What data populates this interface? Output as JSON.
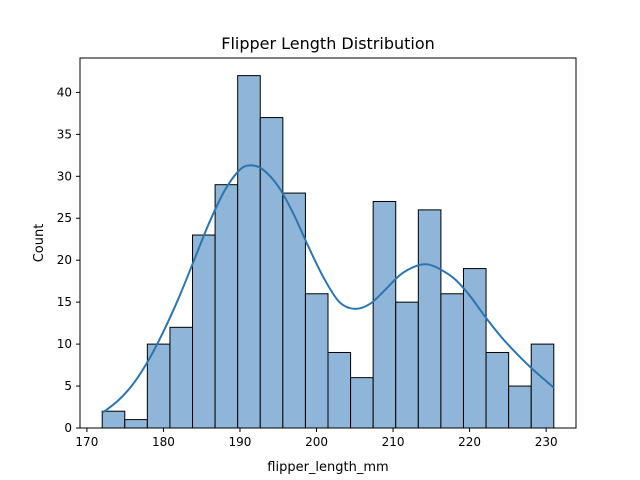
{
  "chart_data": {
    "type": "bar",
    "subtype": "histogram",
    "title": "Flipper Length Distribution",
    "xlabel": "flipper_length_mm",
    "ylabel": "Count",
    "xlim": [
      169.1,
      233.9
    ],
    "ylim": [
      0,
      44.1
    ],
    "xticks": [
      170,
      180,
      190,
      200,
      210,
      220,
      230
    ],
    "yticks": [
      0,
      5,
      10,
      15,
      20,
      25,
      30,
      35,
      40
    ],
    "bins": [
      {
        "x0": 172.0,
        "x1": 174.95,
        "count": 2
      },
      {
        "x0": 174.95,
        "x1": 177.9,
        "count": 1
      },
      {
        "x0": 177.9,
        "x1": 180.85,
        "count": 10
      },
      {
        "x0": 180.85,
        "x1": 183.8,
        "count": 12
      },
      {
        "x0": 183.8,
        "x1": 186.75,
        "count": 23
      },
      {
        "x0": 186.75,
        "x1": 189.7,
        "count": 29
      },
      {
        "x0": 189.7,
        "x1": 192.65,
        "count": 42
      },
      {
        "x0": 192.65,
        "x1": 195.6,
        "count": 37
      },
      {
        "x0": 195.6,
        "x1": 198.55,
        "count": 28
      },
      {
        "x0": 198.55,
        "x1": 201.5,
        "count": 16
      },
      {
        "x0": 201.5,
        "x1": 204.45,
        "count": 9
      },
      {
        "x0": 204.45,
        "x1": 207.4,
        "count": 6
      },
      {
        "x0": 207.4,
        "x1": 210.35,
        "count": 27
      },
      {
        "x0": 210.35,
        "x1": 213.3,
        "count": 15
      },
      {
        "x0": 213.3,
        "x1": 216.25,
        "count": 26
      },
      {
        "x0": 216.25,
        "x1": 219.2,
        "count": 16
      },
      {
        "x0": 219.2,
        "x1": 222.15,
        "count": 19
      },
      {
        "x0": 222.15,
        "x1": 225.1,
        "count": 9
      },
      {
        "x0": 225.1,
        "x1": 228.05,
        "count": 5
      },
      {
        "x0": 228.05,
        "x1": 231.0,
        "count": 10
      }
    ],
    "kde": {
      "x": [
        172,
        174,
        176,
        178,
        180,
        182,
        184,
        186,
        188,
        190,
        191.5,
        193,
        195,
        197,
        199,
        201,
        203,
        205,
        207,
        209,
        211,
        213,
        214.5,
        216,
        218,
        220,
        222,
        224,
        226,
        228,
        231
      ],
      "y": [
        1.8,
        3.2,
        5.2,
        8.0,
        11.5,
        15.5,
        20.0,
        24.5,
        28.3,
        30.8,
        31.3,
        30.8,
        28.8,
        25.5,
        21.5,
        17.8,
        15.0,
        14.2,
        14.8,
        16.5,
        18.3,
        19.3,
        19.5,
        19.0,
        17.8,
        15.8,
        13.3,
        11.0,
        9.0,
        7.2,
        4.8
      ]
    },
    "grid": false,
    "colors": {
      "bar_fill": "#8fb6d8",
      "edge": "#000000",
      "kde_line": "#2c75b0"
    }
  }
}
